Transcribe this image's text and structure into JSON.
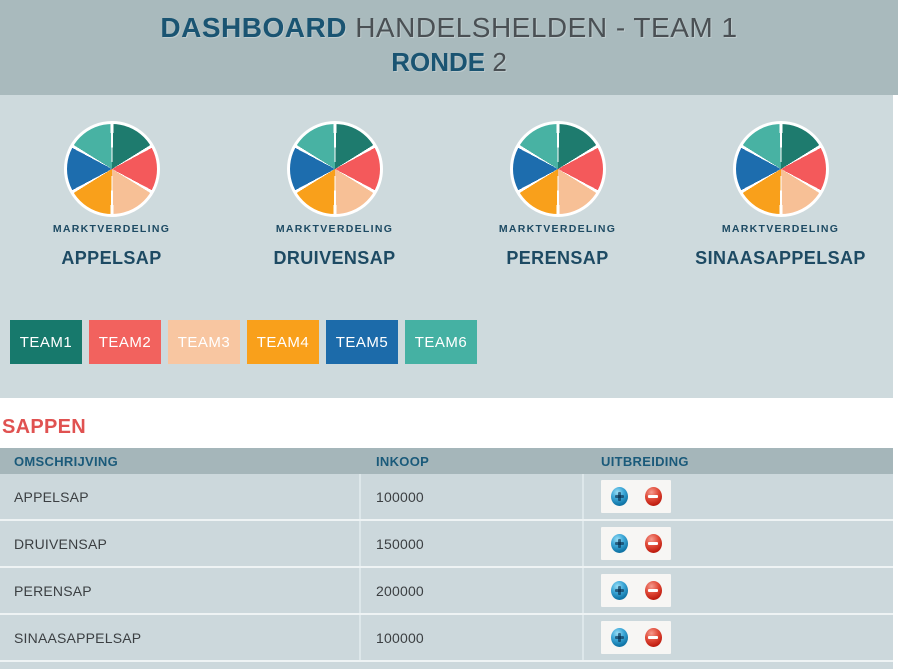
{
  "header": {
    "title_strong": "DASHBOARD",
    "title_text": "HANDELSHELDEN - TEAM 1",
    "round_strong": "RONDE",
    "round_text": "2"
  },
  "market": {
    "caption": "MARKTVERDELING",
    "products": [
      "APPELSAP",
      "DRUIVENSAP",
      "PERENSAP",
      "SINAASAPPELSAP"
    ]
  },
  "teams": [
    {
      "label": "TEAM1",
      "color": "#17796c"
    },
    {
      "label": "TEAM2",
      "color": "#f2625e"
    },
    {
      "label": "TEAM3",
      "color": "#f8c6a1"
    },
    {
      "label": "TEAM4",
      "color": "#f9a01b"
    },
    {
      "label": "TEAM5",
      "color": "#1c6baa"
    },
    {
      "label": "TEAM6",
      "color": "#45b1a3"
    }
  ],
  "chart_data": [
    {
      "type": "pie",
      "title": "MARKTVERDELING APPELSAP",
      "labels": [
        "TEAM1",
        "TEAM2",
        "TEAM3",
        "TEAM4",
        "TEAM5",
        "TEAM6"
      ],
      "values": [
        16.67,
        16.67,
        16.67,
        16.67,
        16.67,
        16.67
      ],
      "colors": [
        "#1e7b6e",
        "#f4595b",
        "#f7c096",
        "#f9a01b",
        "#1d6dae",
        "#48b2a3"
      ],
      "legend_position": "none"
    },
    {
      "type": "pie",
      "title": "MARKTVERDELING DRUIVENSAP",
      "labels": [
        "TEAM1",
        "TEAM2",
        "TEAM3",
        "TEAM4",
        "TEAM5",
        "TEAM6"
      ],
      "values": [
        16.67,
        16.67,
        16.67,
        16.67,
        16.67,
        16.67
      ],
      "colors": [
        "#1e7b6e",
        "#f4595b",
        "#f7c096",
        "#f9a01b",
        "#1d6dae",
        "#48b2a3"
      ],
      "legend_position": "none"
    },
    {
      "type": "pie",
      "title": "MARKTVERDELING PERENSAP",
      "labels": [
        "TEAM1",
        "TEAM2",
        "TEAM3",
        "TEAM4",
        "TEAM5",
        "TEAM6"
      ],
      "values": [
        16.67,
        16.67,
        16.67,
        16.67,
        16.67,
        16.67
      ],
      "colors": [
        "#1e7b6e",
        "#f4595b",
        "#f7c096",
        "#f9a01b",
        "#1d6dae",
        "#48b2a3"
      ],
      "legend_position": "none"
    },
    {
      "type": "pie",
      "title": "MARKTVERDELING SINAASAPPELSAP",
      "labels": [
        "TEAM1",
        "TEAM2",
        "TEAM3",
        "TEAM4",
        "TEAM5",
        "TEAM6"
      ],
      "values": [
        16.67,
        16.67,
        16.67,
        16.67,
        16.67,
        16.67
      ],
      "colors": [
        "#1e7b6e",
        "#f4595b",
        "#f7c096",
        "#f9a01b",
        "#1d6dae",
        "#48b2a3"
      ],
      "legend_position": "none"
    }
  ],
  "sappen": {
    "title": "SAPPEN",
    "columns": [
      "OMSCHRIJVING",
      "INKOOP",
      "UITBREIDING"
    ],
    "rows": [
      {
        "omschrijving": "APPELSAP",
        "inkoop": "100000"
      },
      {
        "omschrijving": "DRUIVENSAP",
        "inkoop": "150000"
      },
      {
        "omschrijving": "PERENSAP",
        "inkoop": "200000"
      },
      {
        "omschrijving": "SINAASAPPELSAP",
        "inkoop": "100000"
      }
    ]
  },
  "colors": {
    "header_band": "#a9babd",
    "panel_background": "#cedadd",
    "table_header_background": "#a5b6ba",
    "row_background": "#ccd8dc",
    "title_red": "#e05251",
    "dark_blue_text": "#1d4a63",
    "header_blue": "#1a5472",
    "header_gray": "#4a5054"
  }
}
